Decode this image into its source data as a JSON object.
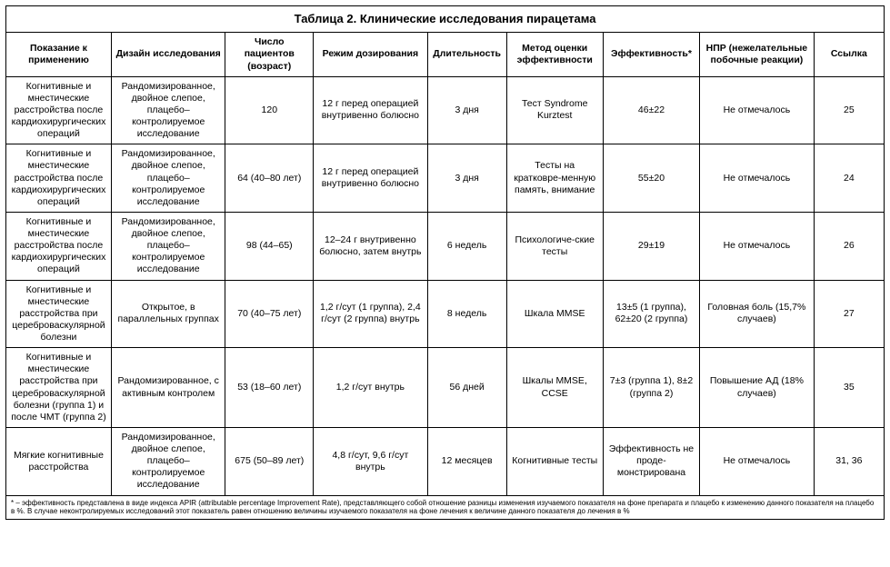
{
  "table": {
    "title": "Таблица 2. Клинические исследования пирацетама",
    "columns": [
      "Показание к применению",
      "Дизайн исследования",
      "Число пациентов (возраст)",
      "Режим дозирования",
      "Длительность",
      "Метод оценки эффективности",
      "Эффективность*",
      "НПР (нежелательные побочные реакции)",
      "Ссылка"
    ],
    "rows": [
      [
        "Когнитивные и мнестические расстройства после кардиохирургических операций",
        "Рандомизированное, двойное слепое, плацебо–контролируемое исследование",
        "120",
        "12 г перед операцией внутривенно болюсно",
        "3 дня",
        "Тест Syndrome Kurztest",
        "46±22",
        "Не отмечалось",
        "25"
      ],
      [
        "Когнитивные и мнестические расстройства после кардиохирургических операций",
        "Рандомизированное, двойное слепое, плацебо–контролируемое исследование",
        "64 (40–80 лет)",
        "12 г перед операцией внутривенно болюсно",
        "3 дня",
        "Тесты на кратковре-менную память, внимание",
        "55±20",
        "Не отмечалось",
        "24"
      ],
      [
        "Когнитивные и мнестические расстройства после кардиохирургических операций",
        "Рандомизированное, двойное слепое, плацебо–контролируемое исследование",
        "98 (44–65)",
        "12–24 г внутривенно болюсно, затем внутрь",
        "6 недель",
        "Психологиче-ские тесты",
        "29±19",
        "Не отмечалось",
        "26"
      ],
      [
        "Когнитивные и мнестические расстройства при цереброваскулярной болезни",
        "Открытое, в параллельных группах",
        "70 (40–75 лет)",
        "1,2 г/сут (1 группа), 2,4 г/сут (2 группа) внутрь",
        "8 недель",
        "Шкала MMSE",
        "13±5 (1 группа), 62±20 (2 группа)",
        "Головная боль (15,7% случаев)",
        "27"
      ],
      [
        "Когнитивные и мнестические расстройства при цереброваскулярной болезни (группа 1) и после ЧМТ (группа 2)",
        "Рандомизированное, с активным контролем",
        "53 (18–60 лет)",
        "1,2 г/сут внутрь",
        "56 дней",
        "Шкалы MMSE, CCSE",
        "7±3 (группа 1), 8±2 (группа 2)",
        "Повышение АД (18% случаев)",
        "35"
      ],
      [
        "Мягкие когнитивные расстройства",
        "Рандомизированное, двойное слепое, плацебо–контролируемое исследование",
        "675 (50–89 лет)",
        "4,8 г/сут, 9,6 г/сут внутрь",
        "12 месяцев",
        "Когнитивные тесты",
        "Эффективность не проде-монстрирована",
        "Не отмечалось",
        "31, 36"
      ]
    ],
    "footnote": "* – эффективность представлена в виде индекса APIR (attributable percentage Improvement Rate), представляющего собой отношение разницы изменения изучаемого показателя на фоне препарата и плацебо к изменению данного показателя на плацебо в %. В случае неконтролируемых исследований этот показатель равен отношению величины изучаемого показателя на фоне лечения к величине данного показателя до лечения в %"
  }
}
